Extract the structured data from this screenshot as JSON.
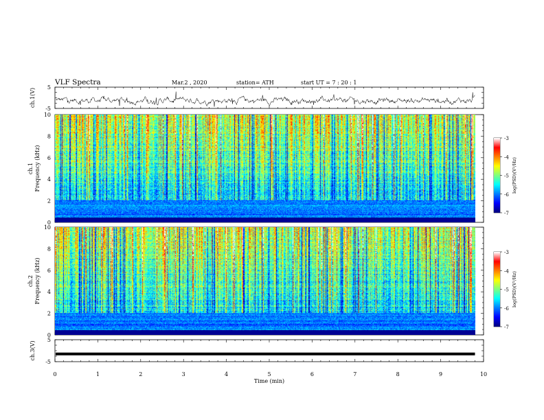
{
  "header": {
    "title": "VLF  Spectra",
    "date": "Mar.2  , 2020",
    "station": "station= ATH",
    "start": "start  UT  =   7  : 20 : 1"
  },
  "chart_data": [
    {
      "type": "line",
      "name": "ch1-waveform",
      "ylabel": "ch.1(V)",
      "ylim": [
        -5,
        5
      ],
      "yticks": [
        "5",
        "-5"
      ],
      "xlim": [
        0,
        10
      ],
      "data_extent_min": 9.8
    },
    {
      "type": "heatmap",
      "name": "ch1-spectrogram",
      "ylabel": "Frequency (kHz)",
      "channel_label": "ch.1",
      "xlim": [
        0,
        10
      ],
      "ylim": [
        0,
        10
      ],
      "yticks": [
        0,
        2,
        4,
        6,
        8,
        10
      ],
      "colorbar": {
        "label": "log(PSD)(V²/Hz)",
        "range": [
          -7,
          -3
        ],
        "ticks": [
          "-3",
          "-4",
          "-5",
          "-6",
          "-7"
        ]
      }
    },
    {
      "type": "heatmap",
      "name": "ch2-spectrogram",
      "ylabel": "Frequency (kHz)",
      "channel_label": "ch.2",
      "xlim": [
        0,
        10
      ],
      "ylim": [
        0,
        10
      ],
      "yticks": [
        0,
        2,
        4,
        6,
        8,
        10
      ],
      "colorbar": {
        "label": "log(PSD)(V²/Hz)",
        "range": [
          -7,
          -3
        ],
        "ticks": [
          "-3",
          "-4",
          "-5",
          "-6",
          "-7"
        ]
      }
    },
    {
      "type": "line",
      "name": "ch3-waveform",
      "ylabel": "ch.3(V)",
      "ylim": [
        -5,
        5
      ],
      "yticks": [
        "5",
        "-5"
      ],
      "xlim": [
        0,
        10
      ],
      "values_constant": -1.5
    }
  ],
  "xaxis": {
    "label": "Time  (min)",
    "ticks": [
      "0",
      "1",
      "2",
      "3",
      "4",
      "5",
      "6",
      "7",
      "8",
      "9",
      "10"
    ]
  },
  "colors": {
    "jet_stops": [
      "#00007f",
      "#0000ff",
      "#007fff",
      "#00ffff",
      "#7fff7f",
      "#ffff00",
      "#ff7f00",
      "#ff0000",
      "#ffffff"
    ]
  }
}
